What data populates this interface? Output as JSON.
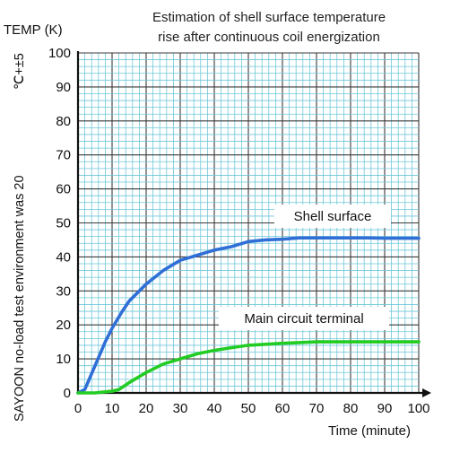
{
  "chart_data": {
    "type": "line",
    "title_line1": "Estimation of shell surface temperature",
    "title_line2": "rise after continuous coil energization",
    "ylabel": "TEMP (K)",
    "xlabel": "Time (minute)",
    "side_note": "SAYOON no-load test environment was 20",
    "side_note_unit": "℃+±5",
    "xlim": [
      0,
      100
    ],
    "ylim": [
      0,
      100
    ],
    "x_ticks": [
      0,
      10,
      20,
      30,
      40,
      50,
      60,
      70,
      80,
      90,
      100
    ],
    "y_ticks": [
      0,
      10,
      20,
      30,
      40,
      50,
      60,
      70,
      80,
      90,
      100
    ],
    "grid": true,
    "series": [
      {
        "name": "Shell surface",
        "color": "#2f6fd6",
        "x": [
          0,
          2,
          5,
          8,
          10,
          13,
          15,
          18,
          20,
          25,
          30,
          35,
          40,
          45,
          50,
          55,
          60,
          65,
          70,
          75,
          80,
          85,
          90,
          95,
          100
        ],
        "y": [
          0,
          1,
          8,
          15,
          19,
          24,
          27,
          30,
          32,
          36,
          39,
          40.5,
          42,
          43,
          44.5,
          45,
          45.2,
          45.6,
          45.6,
          45.6,
          45.6,
          45.6,
          45.5,
          45.5,
          45.5
        ]
      },
      {
        "name": "Main circuit terminal",
        "color": "#22cc22",
        "x": [
          0,
          5,
          10,
          12,
          15,
          20,
          25,
          30,
          35,
          40,
          45,
          50,
          55,
          60,
          65,
          70,
          75,
          80,
          85,
          90,
          95,
          100
        ],
        "y": [
          0,
          0,
          0.5,
          1,
          3,
          6,
          8.5,
          10,
          11.5,
          12.5,
          13.3,
          14,
          14.3,
          14.6,
          14.8,
          15,
          15,
          15,
          15,
          15,
          15,
          15
        ]
      }
    ],
    "annotations": [
      {
        "text": "Shell surface",
        "series": 0
      },
      {
        "text": "Main circuit terminal",
        "series": 1
      }
    ]
  }
}
